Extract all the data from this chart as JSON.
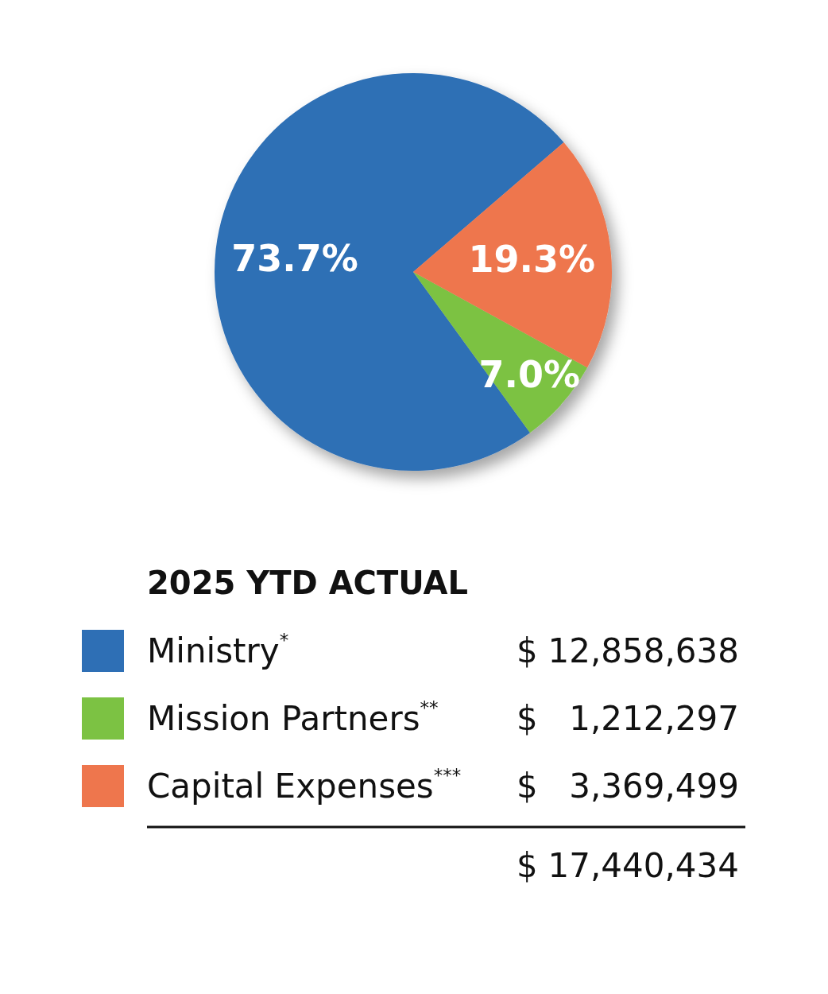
{
  "chart_data": {
    "type": "pie",
    "legend_title": "2025 YTD ACTUAL",
    "categories": [
      "Ministry$^{*}$",
      "Mission Partners$^{**}$",
      "Capital Expenses$^{***}$"
    ],
    "values": [
      73.7,
      7.0,
      19.3
    ],
    "colors": [
      "#2e6fb5",
      "#7cc243",
      "#ee764d"
    ],
    "value_labels": [
      "73.7%",
      "7.0%",
      "19.3%"
    ],
    "annotations": [
      "$ 12,858,638",
      "$ 1,212,297",
      "$ 3,369,499"
    ],
    "totals": [
      "$ 17,440,434"
    ],
    "legend": "bottom"
  }
}
